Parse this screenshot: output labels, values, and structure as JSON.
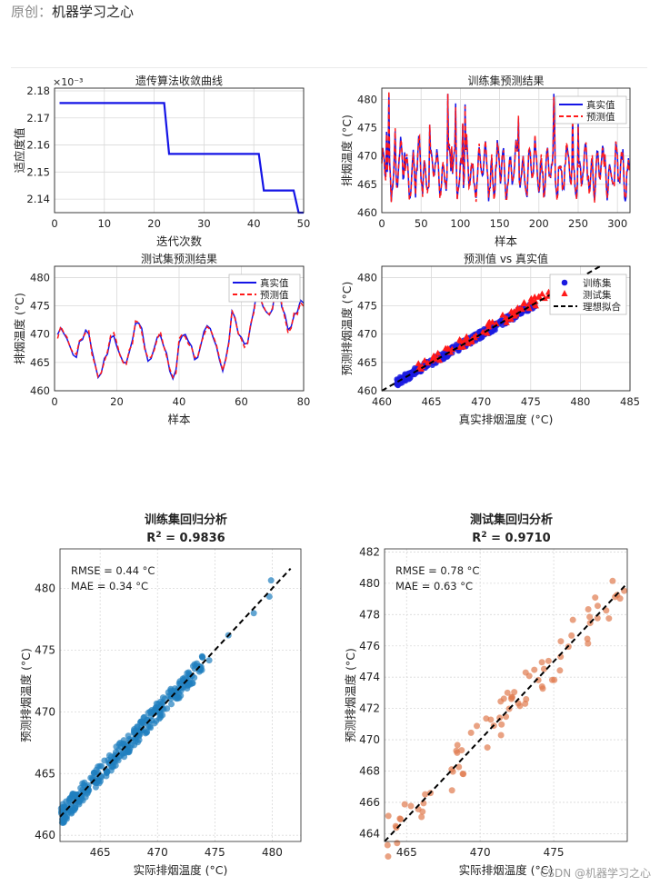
{
  "header": {
    "prefix": "原创：",
    "author": "机器学习之心"
  },
  "footer": {
    "watermark": "CSDN @机器学习之心"
  },
  "chart_data": [
    {
      "id": "ga",
      "type": "line",
      "title": "遗传算法收敛曲线",
      "xlabel": "迭代次数",
      "ylabel": "适应度值",
      "exponent": "×10⁻³",
      "xlim": [
        0,
        50
      ],
      "ylim": [
        2.135,
        2.181
      ],
      "xticks": [
        0,
        10,
        20,
        30,
        40,
        50
      ],
      "yticks": [
        2.14,
        2.15,
        2.16,
        2.17,
        2.18
      ],
      "ytick_labels": [
        "2.14",
        "2.15",
        "2.16",
        "2.17",
        "2.18"
      ],
      "series": [
        {
          "name": "适应度",
          "color": "#1414e6",
          "x": [
            1,
            22,
            23,
            41,
            42,
            48,
            49,
            50
          ],
          "y": [
            2.1755,
            2.1755,
            2.1567,
            2.1567,
            2.1432,
            2.1432,
            2.135,
            2.135
          ]
        }
      ]
    },
    {
      "id": "train",
      "type": "line",
      "title": "训练集预测结果",
      "xlabel": "样本",
      "ylabel": "排烟温度 (°C)",
      "xlim": [
        0,
        316
      ],
      "ylim": [
        460,
        482
      ],
      "xticks": [
        0,
        50,
        100,
        150,
        200,
        250,
        300
      ],
      "yticks": [
        460,
        465,
        470,
        475,
        480
      ],
      "legend": [
        "真实值",
        "预测值"
      ],
      "legend_loc": "top-right",
      "seed": 11,
      "n": 316
    },
    {
      "id": "test",
      "type": "line",
      "title": "测试集预测结果",
      "xlabel": "样本",
      "ylabel": "排烟温度 (°C)",
      "xlim": [
        0,
        80
      ],
      "ylim": [
        460,
        482
      ],
      "xticks": [
        0,
        20,
        40,
        60,
        80
      ],
      "yticks": [
        460,
        465,
        470,
        475,
        480
      ],
      "legend": [
        "真实值",
        "预测值"
      ],
      "legend_loc": "top-right",
      "seed": 5,
      "n": 80
    },
    {
      "id": "pvt",
      "type": "scatter",
      "title": "预测值 vs 真实值",
      "xlabel": "真实排烟温度 (°C)",
      "ylabel": "预测排烟温度 (°C)",
      "xlim": [
        460,
        485
      ],
      "ylim": [
        460,
        482
      ],
      "xticks": [
        460,
        465,
        470,
        475,
        480,
        485
      ],
      "yticks": [
        460,
        465,
        470,
        475,
        480
      ],
      "legend": [
        "训练集",
        "测试集",
        "理想拟合"
      ],
      "legend_loc": "top-right"
    },
    {
      "id": "reg_train",
      "type": "scatter",
      "title": "训练集回归分析",
      "r2_label": "R",
      "r2_value": " = 0.9836",
      "rmse": "RMSE = 0.44 °C",
      "mae": "MAE = 0.34 °C",
      "xlabel": "实际排烟温度 (°C)",
      "ylabel": "预测排烟温度 (°C)",
      "xlim": [
        461.5,
        482.5
      ],
      "ylim": [
        459.5,
        483.2
      ],
      "xticks": [
        465,
        470,
        475,
        480
      ],
      "yticks": [
        460,
        465,
        470,
        475,
        480
      ],
      "color": "#1f7fbf",
      "n": 316,
      "seed": 21,
      "noise": 0.44,
      "range": [
        461.6,
        481.5
      ]
    },
    {
      "id": "reg_test",
      "type": "scatter",
      "title": "测试集回归分析",
      "r2_label": "R",
      "r2_value": " = 0.9710",
      "rmse": "RMSE = 0.78 °C",
      "mae": "MAE = 0.63 °C",
      "xlabel": "实际排烟温度 (°C)",
      "ylabel": "预测排烟温度 (°C)",
      "xlim": [
        463.5,
        480.0
      ],
      "ylim": [
        463.5,
        482.2
      ],
      "xticks": [
        465,
        470,
        475
      ],
      "yticks": [
        464,
        466,
        468,
        470,
        472,
        474,
        476,
        478,
        480,
        482
      ],
      "color": "#e07b4f",
      "n": 80,
      "seed": 33,
      "noise": 0.78,
      "range": [
        463.7,
        479.8
      ]
    }
  ]
}
